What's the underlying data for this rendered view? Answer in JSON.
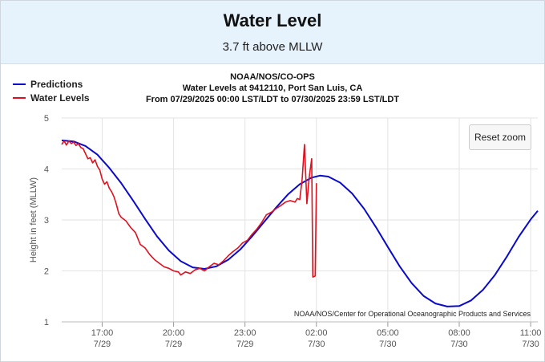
{
  "header": {
    "title": "Water Level",
    "subtitle": "3.7 ft above MLLW"
  },
  "toolbar": {
    "reset_zoom_label": "Reset zoom"
  },
  "chart_data": {
    "type": "line",
    "title_lines": [
      "NOAA/NOS/CO-OPS",
      "Water Levels at 9412110, Port San Luis, CA",
      "From 07/29/2025 00:00 LST/LDT to 07/30/2025 23:59 LST/LDT"
    ],
    "ylabel": "Height in feet (MLLW)",
    "ylim": [
      1,
      5
    ],
    "yticks": [
      1,
      2,
      3,
      4,
      5
    ],
    "xlim": [
      15.3,
      35.3
    ],
    "xticks": [
      {
        "x": 17,
        "time": "17:00",
        "date": "7/29"
      },
      {
        "x": 20,
        "time": "20:00",
        "date": "7/29"
      },
      {
        "x": 23,
        "time": "23:00",
        "date": "7/29"
      },
      {
        "x": 26,
        "time": "02:00",
        "date": "7/30"
      },
      {
        "x": 29,
        "time": "05:00",
        "date": "7/30"
      },
      {
        "x": 32,
        "time": "08:00",
        "date": "7/30"
      },
      {
        "x": 35,
        "time": "11:00",
        "date": "7/30"
      }
    ],
    "grid": true,
    "legend_position": "top-left",
    "credits": "NOAA/NOS/Center for Operational Oceanographic Products and Services",
    "series": [
      {
        "name": "Predictions",
        "color": "#0a0acc",
        "points": [
          [
            15.3,
            4.56
          ],
          [
            15.8,
            4.54
          ],
          [
            16.3,
            4.45
          ],
          [
            16.8,
            4.28
          ],
          [
            17.3,
            4.02
          ],
          [
            17.8,
            3.72
          ],
          [
            18.3,
            3.38
          ],
          [
            18.8,
            3.02
          ],
          [
            19.3,
            2.68
          ],
          [
            19.8,
            2.4
          ],
          [
            20.3,
            2.19
          ],
          [
            20.8,
            2.07
          ],
          [
            21.3,
            2.04
          ],
          [
            21.8,
            2.09
          ],
          [
            22.3,
            2.22
          ],
          [
            22.8,
            2.42
          ],
          [
            23.3,
            2.68
          ],
          [
            23.8,
            2.96
          ],
          [
            24.3,
            3.24
          ],
          [
            24.8,
            3.5
          ],
          [
            25.3,
            3.7
          ],
          [
            25.8,
            3.83
          ],
          [
            26.15,
            3.87
          ],
          [
            26.5,
            3.85
          ],
          [
            27.0,
            3.73
          ],
          [
            27.5,
            3.52
          ],
          [
            28.0,
            3.22
          ],
          [
            28.5,
            2.86
          ],
          [
            29.0,
            2.47
          ],
          [
            29.5,
            2.09
          ],
          [
            30.0,
            1.76
          ],
          [
            30.5,
            1.51
          ],
          [
            31.0,
            1.36
          ],
          [
            31.5,
            1.3
          ],
          [
            32.0,
            1.31
          ],
          [
            32.5,
            1.42
          ],
          [
            33.0,
            1.63
          ],
          [
            33.5,
            1.92
          ],
          [
            34.0,
            2.28
          ],
          [
            34.5,
            2.67
          ],
          [
            35.0,
            3.01
          ],
          [
            35.3,
            3.18
          ]
        ]
      },
      {
        "name": "Water Levels",
        "color": "#e0101e",
        "points": [
          [
            15.3,
            4.48
          ],
          [
            15.4,
            4.55
          ],
          [
            15.5,
            4.47
          ],
          [
            15.6,
            4.55
          ],
          [
            15.7,
            4.5
          ],
          [
            15.8,
            4.53
          ],
          [
            15.9,
            4.46
          ],
          [
            16.0,
            4.5
          ],
          [
            16.1,
            4.42
          ],
          [
            16.2,
            4.4
          ],
          [
            16.3,
            4.3
          ],
          [
            16.4,
            4.2
          ],
          [
            16.5,
            4.22
          ],
          [
            16.6,
            4.12
          ],
          [
            16.7,
            4.18
          ],
          [
            16.8,
            4.05
          ],
          [
            16.9,
            3.98
          ],
          [
            17.0,
            3.8
          ],
          [
            17.1,
            3.7
          ],
          [
            17.2,
            3.75
          ],
          [
            17.3,
            3.62
          ],
          [
            17.4,
            3.55
          ],
          [
            17.5,
            3.45
          ],
          [
            17.6,
            3.3
          ],
          [
            17.7,
            3.12
          ],
          [
            17.8,
            3.05
          ],
          [
            18.0,
            2.98
          ],
          [
            18.2,
            2.85
          ],
          [
            18.4,
            2.75
          ],
          [
            18.6,
            2.52
          ],
          [
            18.8,
            2.45
          ],
          [
            19.0,
            2.32
          ],
          [
            19.2,
            2.22
          ],
          [
            19.4,
            2.15
          ],
          [
            19.6,
            2.08
          ],
          [
            19.8,
            2.05
          ],
          [
            20.0,
            2.0
          ],
          [
            20.2,
            1.98
          ],
          [
            20.3,
            1.92
          ],
          [
            20.5,
            1.98
          ],
          [
            20.7,
            1.95
          ],
          [
            20.9,
            2.02
          ],
          [
            21.1,
            2.05
          ],
          [
            21.3,
            2.0
          ],
          [
            21.5,
            2.08
          ],
          [
            21.7,
            2.15
          ],
          [
            21.9,
            2.12
          ],
          [
            22.1,
            2.2
          ],
          [
            22.3,
            2.3
          ],
          [
            22.5,
            2.38
          ],
          [
            22.7,
            2.45
          ],
          [
            22.9,
            2.55
          ],
          [
            23.1,
            2.6
          ],
          [
            23.3,
            2.72
          ],
          [
            23.5,
            2.82
          ],
          [
            23.7,
            2.95
          ],
          [
            23.9,
            3.1
          ],
          [
            24.1,
            3.15
          ],
          [
            24.3,
            3.22
          ],
          [
            24.5,
            3.28
          ],
          [
            24.7,
            3.35
          ],
          [
            24.9,
            3.38
          ],
          [
            25.1,
            3.35
          ],
          [
            25.2,
            3.42
          ],
          [
            25.3,
            3.4
          ],
          [
            25.4,
            3.8
          ],
          [
            25.5,
            4.48
          ],
          [
            25.6,
            3.32
          ],
          [
            25.7,
            3.85
          ],
          [
            25.8,
            4.2
          ],
          [
            25.85,
            1.88
          ],
          [
            25.95,
            1.9
          ],
          [
            26.0,
            3.72
          ]
        ]
      }
    ]
  }
}
